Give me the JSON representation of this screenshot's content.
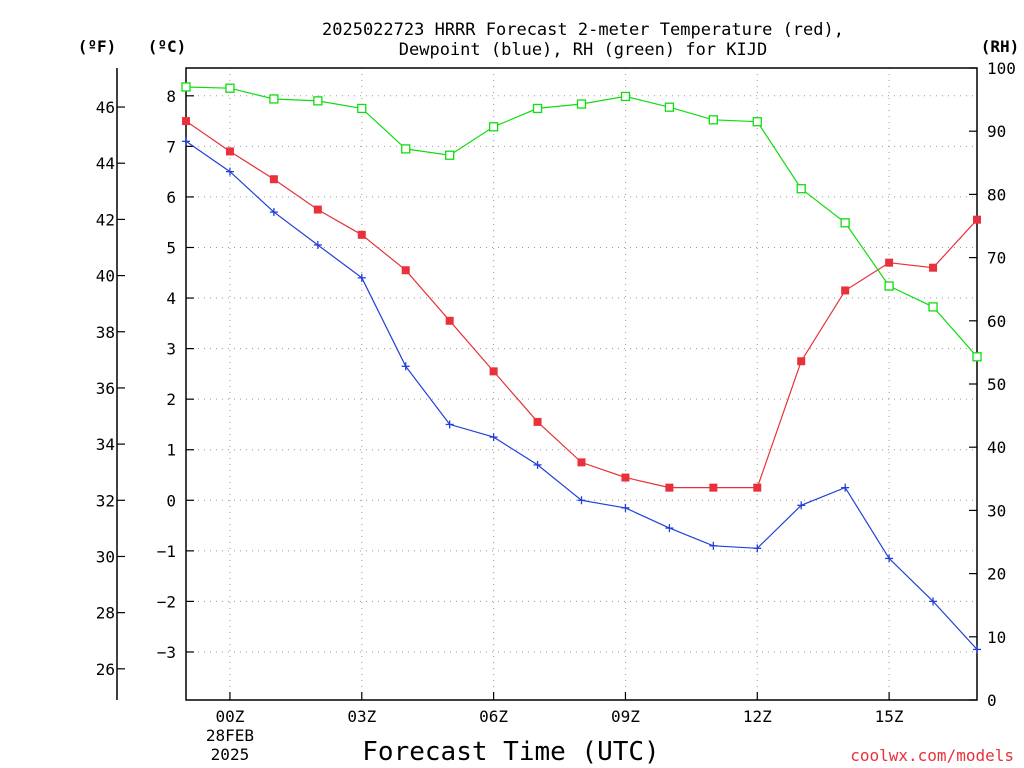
{
  "chart_data": {
    "type": "line",
    "title_lines": [
      "2025022723 HRRR Forecast 2-meter Temperature (red),",
      "Dewpoint (blue), RH (green) for KIJD"
    ],
    "xlabel": "Forecast Time (UTC)",
    "credit": "coolwx.com/models",
    "axis_units": {
      "fahrenheit": "(ºF)",
      "celsius": "(ºC)",
      "rh": "(RH)"
    },
    "x_start_hour": 23,
    "x_end_hour": 17,
    "x_ticks": [
      {
        "hour": 0,
        "label": "00Z",
        "sub1": "28FEB",
        "sub2": "2025"
      },
      {
        "hour": 3,
        "label": "03Z"
      },
      {
        "hour": 6,
        "label": "06Z"
      },
      {
        "hour": 9,
        "label": "09Z"
      },
      {
        "hour": 12,
        "label": "12Z"
      },
      {
        "hour": 15,
        "label": "15Z"
      }
    ],
    "y_celsius_range": [
      -3.95,
      8.55
    ],
    "y_celsius_ticks": [
      8,
      7,
      6,
      5,
      4,
      3,
      2,
      1,
      0,
      -1,
      -2,
      -3
    ],
    "y_celsius_labels": [
      "8",
      "7",
      "6",
      "5",
      "4",
      "3",
      "2",
      "1",
      "0",
      "−1",
      "−2",
      "−3"
    ],
    "y_fahrenheit_ticks": [
      46,
      44,
      42,
      40,
      38,
      36,
      34,
      32,
      30,
      28,
      26
    ],
    "y_fahrenheit_labels": [
      "46",
      "44",
      "42",
      "40",
      "38",
      "36",
      "34",
      "32",
      "30",
      "28",
      "26"
    ],
    "y_rh_range": [
      0,
      100
    ],
    "y_rh_ticks": [
      100,
      90,
      80,
      70,
      60,
      50,
      40,
      30,
      20,
      10,
      0
    ],
    "y_rh_labels": [
      "100",
      "90",
      "80",
      "70",
      "60",
      "50",
      "40",
      "30",
      "20",
      "10",
      "0"
    ],
    "x_hours": [
      "23Z",
      "00Z",
      "01Z",
      "02Z",
      "03Z",
      "04Z",
      "05Z",
      "06Z",
      "07Z",
      "08Z",
      "09Z",
      "10Z",
      "11Z",
      "12Z",
      "13Z",
      "14Z",
      "15Z",
      "16Z",
      "17Z"
    ],
    "series": [
      {
        "key": "temperature",
        "unit": "C",
        "color": "#e8313a",
        "marker": "filled-square",
        "values": [
          7.5,
          6.9,
          6.35,
          5.75,
          5.25,
          4.55,
          3.55,
          2.55,
          1.55,
          0.75,
          0.45,
          0.25,
          0.25,
          0.25,
          2.75,
          4.15,
          4.7,
          4.6,
          5.55
        ]
      },
      {
        "key": "dewpoint",
        "unit": "C",
        "color": "#2040d8",
        "marker": "plus",
        "values": [
          7.1,
          6.5,
          5.7,
          5.05,
          4.4,
          2.65,
          1.5,
          1.25,
          0.7,
          0.0,
          -0.15,
          -0.55,
          -0.9,
          -0.95,
          -0.1,
          0.25,
          -1.15,
          -2.0,
          -2.95
        ]
      },
      {
        "key": "rh",
        "unit": "%",
        "color": "#10dc10",
        "marker": "open-square",
        "values": [
          97.0,
          96.8,
          95.1,
          94.8,
          93.6,
          87.2,
          86.2,
          90.7,
          93.6,
          94.3,
          95.5,
          93.8,
          91.8,
          91.5,
          80.9,
          75.5,
          65.5,
          62.2,
          54.3
        ]
      }
    ]
  }
}
